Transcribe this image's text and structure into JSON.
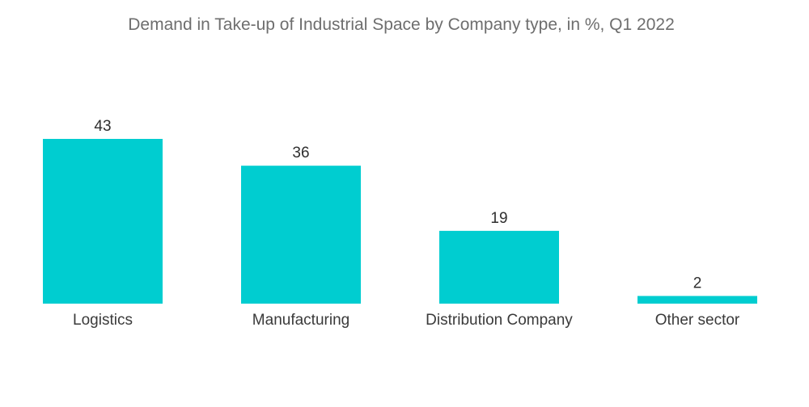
{
  "chart_data": {
    "type": "bar",
    "title": "Demand in Take-up of Industrial Space by Company type, in %,  Q1 2022",
    "categories": [
      "Logistics",
      "Manufacturing",
      "Distribution Company",
      "Other sector"
    ],
    "values": [
      43,
      36,
      19,
      2
    ],
    "value_labels": [
      "43",
      "36",
      "19",
      "2"
    ],
    "xlabel": "",
    "ylabel": "",
    "ylim": [
      0,
      43
    ],
    "grid": false,
    "legend": "none",
    "colors": {
      "bar": "#00CDD0"
    }
  }
}
